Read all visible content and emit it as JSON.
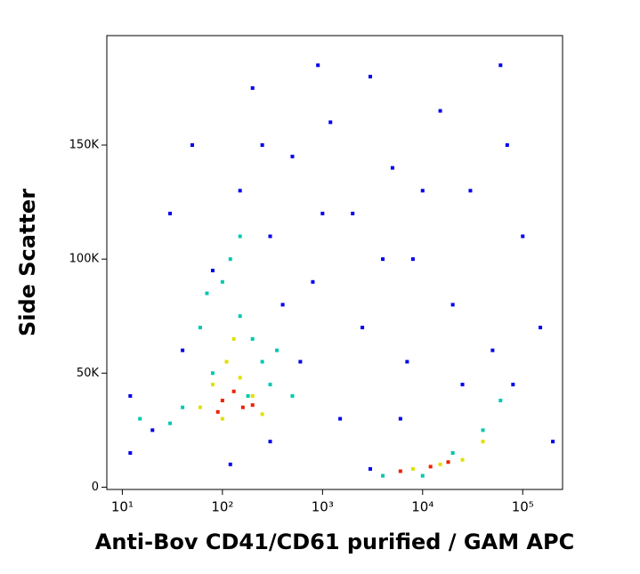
{
  "chart_data": {
    "type": "scatter",
    "x_label": "Anti-Bov CD41/CD61 purified / GAM APC",
    "y_label": "Side Scatter",
    "x_log": true,
    "xlim": [
      7,
      250000
    ],
    "xticks": [
      {
        "value": 10,
        "label": "10¹"
      },
      {
        "value": 100,
        "label": "10²"
      },
      {
        "value": 1000,
        "label": "10³"
      },
      {
        "value": 10000,
        "label": "10⁴"
      },
      {
        "value": 100000,
        "label": "10⁵"
      }
    ],
    "ylim": [
      -1000,
      198000
    ],
    "yticks": [
      0,
      {
        "value": 50000,
        "label": "50K"
      },
      {
        "value": 100000,
        "label": "100K"
      },
      {
        "value": 150000,
        "label": "150K"
      }
    ],
    "series": [
      {
        "color": "#0000ee",
        "x": [
          30,
          50,
          80,
          150,
          200,
          300,
          500,
          800,
          1200,
          2000,
          3000,
          5000,
          8000,
          15000,
          30000,
          60000,
          100000,
          150000,
          40,
          600,
          2500,
          7000,
          20000,
          50000,
          80000,
          1500,
          300,
          20,
          12,
          12,
          3000,
          200000,
          900,
          250,
          4000,
          10000,
          120,
          70000,
          400,
          1000,
          6000,
          25000
        ],
        "values": [
          120000,
          150000,
          95000,
          130000,
          175000,
          110000,
          145000,
          90000,
          160000,
          120000,
          180000,
          140000,
          100000,
          165000,
          130000,
          185000,
          110000,
          70000,
          60000,
          55000,
          70000,
          55000,
          80000,
          60000,
          45000,
          30000,
          20000,
          25000,
          40000,
          15000,
          8000,
          20000,
          185000,
          150000,
          100000,
          130000,
          10000,
          150000,
          80000,
          120000,
          30000,
          45000
        ]
      },
      {
        "color": "#00c8b0",
        "x": [
          100,
          150,
          60,
          200,
          250,
          80,
          300,
          40,
          150,
          20000,
          40000,
          60000,
          4000,
          120,
          350,
          70,
          180,
          30,
          15,
          10000,
          500
        ],
        "values": [
          90000,
          75000,
          70000,
          65000,
          55000,
          50000,
          45000,
          35000,
          110000,
          15000,
          25000,
          38000,
          5000,
          100000,
          60000,
          85000,
          40000,
          28000,
          30000,
          5000,
          40000
        ]
      },
      {
        "color": "#e0e000",
        "x": [
          80,
          110,
          150,
          200,
          60,
          130,
          25000,
          40000,
          8000,
          15000,
          100,
          250
        ],
        "values": [
          45000,
          55000,
          48000,
          40000,
          35000,
          65000,
          12000,
          20000,
          8000,
          10000,
          30000,
          32000
        ]
      },
      {
        "color": "#ee2200",
        "x": [
          100,
          130,
          160,
          90,
          200,
          6000,
          12000,
          18000
        ],
        "values": [
          38000,
          42000,
          35000,
          33000,
          36000,
          7000,
          9000,
          11000
        ]
      }
    ]
  }
}
